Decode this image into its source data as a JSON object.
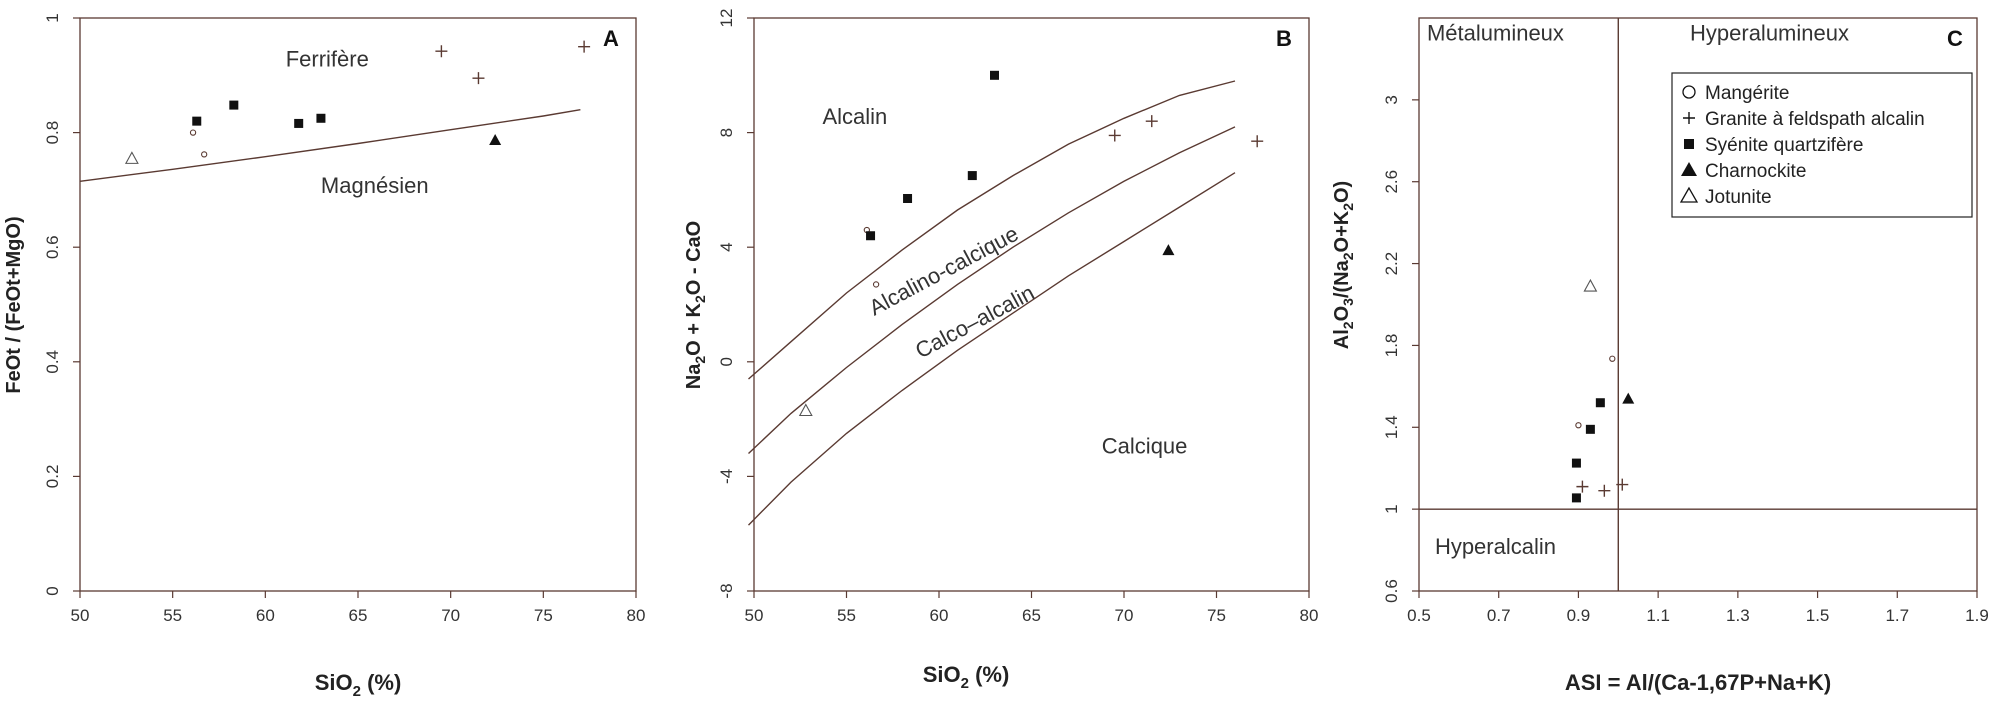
{
  "colors": {
    "axis": "#5a3a32",
    "marker": "#111111",
    "marker_brown": "#5a3a32",
    "text": "#333333"
  },
  "legend": {
    "entries": [
      {
        "symbol": "open-circle",
        "label": "Mangérite"
      },
      {
        "symbol": "plus",
        "label": "Granite à feldspath alcalin"
      },
      {
        "symbol": "filled-square",
        "label": "Syénite quartzifère"
      },
      {
        "symbol": "filled-triangle",
        "label": "Charnockite"
      },
      {
        "symbol": "open-triangle",
        "label": "Jotunite"
      }
    ]
  },
  "chart_data": [
    {
      "type": "scatter",
      "panel": "A",
      "xlabel_main": "SiO",
      "xlabel_sub": "2",
      "xlabel_tail": " (%)",
      "ylabel": "FeOt / (FeOt+MgO)",
      "xlim": [
        50,
        80
      ],
      "ylim": [
        0,
        1
      ],
      "xticks": [
        50,
        55,
        60,
        65,
        70,
        75,
        80
      ],
      "yticks": [
        0,
        0.2,
        0.4,
        0.6,
        0.8,
        1
      ],
      "ytick_labels": [
        "0",
        "0.2",
        "0.4",
        "0.6",
        "0.8",
        "1"
      ],
      "region_labels": [
        {
          "text": "Ferrifère",
          "x": 61.1,
          "y": 0.915
        },
        {
          "text": "Magnésien",
          "x": 63.0,
          "y": 0.695
        }
      ],
      "boundary": [
        [
          50,
          0.715
        ],
        [
          55,
          0.736
        ],
        [
          60,
          0.758
        ],
        [
          65,
          0.781
        ],
        [
          70,
          0.805
        ],
        [
          75,
          0.829
        ],
        [
          77,
          0.84
        ]
      ],
      "series": [
        {
          "name": "Mangérite",
          "symbol": "open-circle-small",
          "points": [
            [
              56.1,
              0.8
            ],
            [
              56.7,
              0.762
            ]
          ]
        },
        {
          "name": "Granite à feldspath alcalin",
          "symbol": "plus",
          "points": [
            [
              69.5,
              0.942
            ],
            [
              71.5,
              0.895
            ],
            [
              77.2,
              0.95
            ]
          ]
        },
        {
          "name": "Syénite quartzifère",
          "symbol": "filled-square",
          "points": [
            [
              56.3,
              0.82
            ],
            [
              58.3,
              0.848
            ],
            [
              61.8,
              0.816
            ],
            [
              63.0,
              0.825
            ]
          ]
        },
        {
          "name": "Charnockite",
          "symbol": "filled-triangle",
          "points": [
            [
              72.4,
              0.787
            ]
          ]
        },
        {
          "name": "Jotunite",
          "symbol": "open-triangle",
          "points": [
            [
              52.8,
              0.755
            ]
          ]
        }
      ]
    },
    {
      "type": "scatter",
      "panel": "B",
      "xlabel_main": "SiO",
      "xlabel_sub": "2",
      "xlabel_tail": " (%)",
      "ylabel_parts": [
        "Na",
        "2",
        "O + K",
        "2",
        "O - CaO"
      ],
      "xlim": [
        50,
        80
      ],
      "ylim": [
        -8,
        12
      ],
      "xticks": [
        50,
        55,
        60,
        65,
        70,
        75,
        80
      ],
      "yticks": [
        -8,
        -4,
        0,
        4,
        8,
        12
      ],
      "ytick_labels": [
        "-8",
        "-4",
        "0",
        "4",
        "8",
        "12"
      ],
      "region_labels": [
        {
          "text": "Alcalin",
          "x": 53.7,
          "y": 8.3,
          "rotate": 0
        },
        {
          "text": "Alcalino-calcique",
          "x": 56.5,
          "y": 1.6,
          "rotate": -28
        },
        {
          "text": "Calco–alcalin",
          "x": 59.0,
          "y": 0.1,
          "rotate": -28
        },
        {
          "text": "Calcique",
          "x": 68.8,
          "y": -3.2,
          "rotate": 0
        }
      ],
      "boundaries": [
        [
          [
            49.7,
            -0.6
          ],
          [
            52,
            0.7
          ],
          [
            55,
            2.4
          ],
          [
            58,
            3.9
          ],
          [
            61,
            5.3
          ],
          [
            64,
            6.5
          ],
          [
            67,
            7.6
          ],
          [
            70,
            8.5
          ],
          [
            73,
            9.3
          ],
          [
            76,
            9.8
          ]
        ],
        [
          [
            49.7,
            -3.2
          ],
          [
            52,
            -1.8
          ],
          [
            55,
            -0.2
          ],
          [
            58,
            1.3
          ],
          [
            61,
            2.7
          ],
          [
            64,
            4.0
          ],
          [
            67,
            5.2
          ],
          [
            70,
            6.3
          ],
          [
            73,
            7.3
          ],
          [
            76,
            8.2
          ]
        ],
        [
          [
            49.7,
            -5.7
          ],
          [
            52,
            -4.2
          ],
          [
            55,
            -2.5
          ],
          [
            58,
            -1.0
          ],
          [
            61,
            0.4
          ],
          [
            64,
            1.7
          ],
          [
            67,
            3.0
          ],
          [
            70,
            4.2
          ],
          [
            73,
            5.4
          ],
          [
            76,
            6.6
          ]
        ]
      ],
      "series": [
        {
          "name": "Mangérite",
          "symbol": "open-circle-small",
          "points": [
            [
              56.1,
              4.6
            ],
            [
              56.6,
              2.7
            ]
          ]
        },
        {
          "name": "Granite à feldspath alcalin",
          "symbol": "plus",
          "points": [
            [
              69.5,
              7.9
            ],
            [
              71.5,
              8.4
            ],
            [
              77.2,
              7.7
            ]
          ]
        },
        {
          "name": "Syénite quartzifère",
          "symbol": "filled-square",
          "points": [
            [
              56.3,
              4.4
            ],
            [
              58.3,
              5.7
            ],
            [
              61.8,
              6.5
            ],
            [
              63.0,
              10.0
            ]
          ]
        },
        {
          "name": "Charnockite",
          "symbol": "filled-triangle",
          "points": [
            [
              72.4,
              3.9
            ]
          ]
        },
        {
          "name": "Jotunite",
          "symbol": "open-triangle",
          "points": [
            [
              52.8,
              -1.7
            ]
          ]
        }
      ]
    },
    {
      "type": "scatter",
      "panel": "C",
      "xlabel": "ASI = Al/(Ca-1,67P+Na+K)",
      "ylabel_parts": [
        "Al",
        "2",
        "O",
        "3",
        "/(Na",
        "2",
        "O+K",
        "2",
        "O)"
      ],
      "xlim": [
        0.5,
        1.9
      ],
      "ylim": [
        0.6,
        3.4
      ],
      "xticks": [
        0.5,
        0.7,
        0.9,
        1.1,
        1.3,
        1.5,
        1.7,
        1.9
      ],
      "xtick_labels": [
        "0.5",
        "0.7",
        "0.9",
        "1.1",
        "1.3",
        "1.5",
        "1.7",
        "1.9"
      ],
      "yticks": [
        0.6,
        1,
        1.4,
        1.8,
        2.2,
        2.6,
        3
      ],
      "ytick_labels": [
        "0.6",
        "1",
        "1.4",
        "1.8",
        "2.2",
        "2.6",
        "3"
      ],
      "divider_x": 1.0,
      "divider_y": 1.0,
      "region_labels": [
        {
          "text": "Métalumineux",
          "x": 0.52,
          "y": 3.29
        },
        {
          "text": "Hyperalumineux",
          "x": 1.18,
          "y": 3.29
        },
        {
          "text": "Hyperalcalin",
          "x": 0.54,
          "y": 0.78
        }
      ],
      "series": [
        {
          "name": "Mangérite",
          "symbol": "open-circle-small",
          "points": [
            [
              0.9,
              1.41
            ],
            [
              0.985,
              1.735
            ]
          ]
        },
        {
          "name": "Granite à feldspath alcalin",
          "symbol": "plus",
          "points": [
            [
              0.91,
              1.11
            ],
            [
              0.965,
              1.09
            ],
            [
              1.01,
              1.12
            ]
          ]
        },
        {
          "name": "Syénite quartzifère",
          "symbol": "filled-square",
          "points": [
            [
              0.895,
              1.225
            ],
            [
              0.93,
              1.39
            ],
            [
              0.955,
              1.52
            ],
            [
              0.895,
              1.055
            ]
          ]
        },
        {
          "name": "Charnockite",
          "symbol": "filled-triangle",
          "points": [
            [
              1.025,
              1.54
            ]
          ]
        },
        {
          "name": "Jotunite",
          "symbol": "open-triangle",
          "points": [
            [
              0.93,
              2.09
            ]
          ]
        }
      ]
    }
  ]
}
